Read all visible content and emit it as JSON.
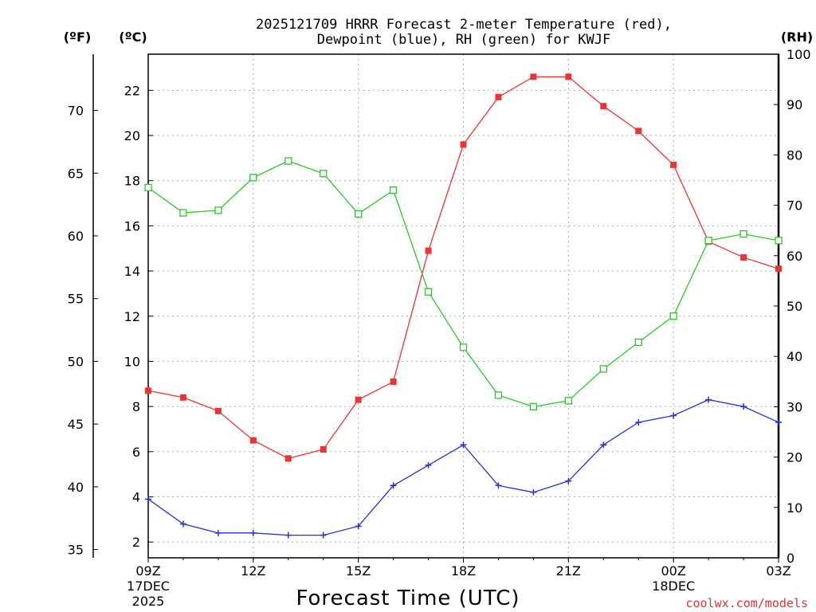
{
  "chart_data": {
    "type": "line",
    "title_line1": "2025121709 HRRR Forecast 2-meter Temperature (red),",
    "title_line2": "Dewpoint (blue), RH (green) for KWJF",
    "xlabel": "Forecast Time (UTC)",
    "left_outer_unit": "(ºF)",
    "left_inner_unit": "(ºC)",
    "right_unit": "(RH)",
    "credit": "coolwx.com/models",
    "hours": [
      9,
      10,
      11,
      12,
      13,
      14,
      15,
      16,
      17,
      18,
      19,
      20,
      21,
      22,
      23,
      24,
      25,
      26,
      27
    ],
    "x_ticks": [
      {
        "hour": 9,
        "label": "09Z",
        "sub1": "17DEC",
        "sub2": "2025"
      },
      {
        "hour": 12,
        "label": "12Z",
        "sub1": "",
        "sub2": ""
      },
      {
        "hour": 15,
        "label": "15Z",
        "sub1": "",
        "sub2": ""
      },
      {
        "hour": 18,
        "label": "18Z",
        "sub1": "",
        "sub2": ""
      },
      {
        "hour": 21,
        "label": "21Z",
        "sub1": "",
        "sub2": ""
      },
      {
        "hour": 24,
        "label": "00Z",
        "sub1": "18DEC",
        "sub2": ""
      },
      {
        "hour": 27,
        "label": "03Z",
        "sub1": "",
        "sub2": ""
      }
    ],
    "x_range": [
      9,
      27
    ],
    "y_celsius_range": [
      1.3,
      23.6
    ],
    "y_celsius_ticks": [
      2,
      4,
      6,
      8,
      10,
      12,
      14,
      16,
      18,
      20,
      22
    ],
    "y_fahrenheit_ticks": [
      35,
      40,
      45,
      50,
      55,
      60,
      65,
      70
    ],
    "y_rh_range": [
      0,
      100
    ],
    "y_rh_ticks": [
      0,
      10,
      20,
      30,
      40,
      50,
      60,
      70,
      80,
      90,
      100
    ],
    "series": [
      {
        "name": "2-meter Temperature",
        "axis": "celsius",
        "color": "#ee3333",
        "marker": "filled-square",
        "values": [
          8.7,
          8.4,
          7.8,
          6.5,
          5.7,
          6.1,
          8.3,
          9.1,
          14.9,
          19.6,
          21.7,
          22.6,
          22.6,
          21.3,
          20.2,
          18.7,
          15.3,
          14.6,
          14.1
        ]
      },
      {
        "name": "Dewpoint",
        "axis": "celsius",
        "color": "#2233dd",
        "marker": "plus",
        "values": [
          3.9,
          2.8,
          2.4,
          2.4,
          2.3,
          2.3,
          2.7,
          4.5,
          5.4,
          6.3,
          4.5,
          4.2,
          4.7,
          6.3,
          7.3,
          7.6,
          8.3,
          8.0,
          7.3
        ]
      },
      {
        "name": "RH",
        "axis": "rh",
        "color": "#22cc22",
        "marker": "open-square",
        "values": [
          73.5,
          68.5,
          69,
          75.5,
          78.8,
          76.3,
          68.3,
          73,
          52.8,
          41.8,
          32.3,
          30,
          31.2,
          37.5,
          42.8,
          48,
          63,
          64.3,
          63
        ]
      }
    ]
  }
}
